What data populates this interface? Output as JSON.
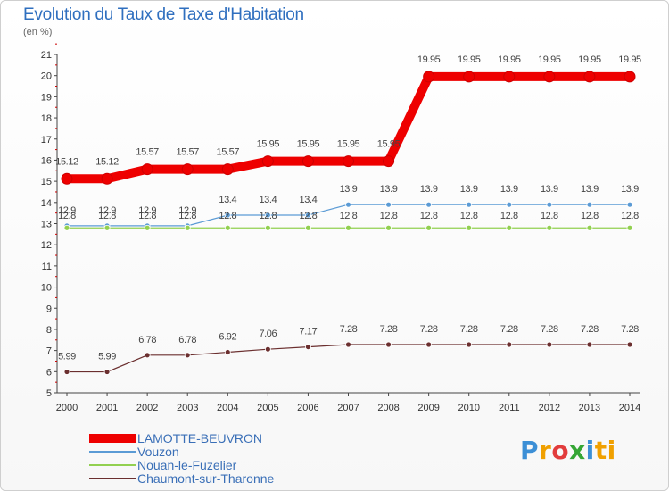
{
  "header": {
    "title": "Evolution du Taux de Taxe d'Habitation",
    "subtitle": "(en %)"
  },
  "logo": {
    "text": "Proxiti"
  },
  "chart_data": {
    "type": "line",
    "x": [
      "2000",
      "2001",
      "2002",
      "2003",
      "2004",
      "2005",
      "2006",
      "2007",
      "2008",
      "2009",
      "2010",
      "2011",
      "2012",
      "2013",
      "2014"
    ],
    "ylim": [
      5,
      21
    ],
    "yticks": [
      5,
      6,
      7,
      8,
      9,
      10,
      11,
      12,
      13,
      14,
      15,
      16,
      17,
      18,
      19,
      20,
      21
    ],
    "grid": false,
    "legend_position": "bottom-left",
    "series": [
      {
        "name": "LAMOTTE-BEUVRON",
        "color": "#ee0000",
        "values": [
          15.12,
          15.12,
          15.57,
          15.57,
          15.57,
          15.95,
          15.95,
          15.95,
          15.95,
          19.95,
          19.95,
          19.95,
          19.95,
          19.95,
          19.95
        ],
        "labels": [
          "15.12",
          "15.12",
          "15.57",
          "15.57",
          "15.57",
          "15.95",
          "15.95",
          "15.95",
          "15.95",
          "19.95",
          "19.95",
          "19.95",
          "19.95",
          "19.95",
          "19.95"
        ]
      },
      {
        "name": "Vouzon",
        "color": "#5b9bd5",
        "values": [
          12.9,
          12.9,
          12.9,
          12.9,
          13.4,
          13.4,
          13.4,
          13.9,
          13.9,
          13.9,
          13.9,
          13.9,
          13.9,
          13.9,
          13.9
        ],
        "labels": [
          "12.9",
          "12.9",
          "12.9",
          "12.9",
          "13.4",
          "13.4",
          "13.4",
          "13.9",
          "13.9",
          "13.9",
          "13.9",
          "13.9",
          "13.9",
          "13.9",
          "13.9"
        ]
      },
      {
        "name": "Nouan-le-Fuzelier",
        "color": "#92d050",
        "values": [
          12.8,
          12.8,
          12.8,
          12.8,
          12.8,
          12.8,
          12.8,
          12.8,
          12.8,
          12.8,
          12.8,
          12.8,
          12.8,
          12.8,
          12.8
        ],
        "labels": [
          "12.8",
          "12.8",
          "12.8",
          "12.8",
          "12.8",
          "12.8",
          "12.8",
          "12.8",
          "12.8",
          "12.8",
          "12.8",
          "12.8",
          "12.8",
          "12.8",
          "12.8"
        ]
      },
      {
        "name": "Chaumont-sur-Tharonne",
        "color": "#6b2f2f",
        "values": [
          5.99,
          5.99,
          6.78,
          6.78,
          6.92,
          7.06,
          7.17,
          7.28,
          7.28,
          7.28,
          7.28,
          7.28,
          7.28,
          7.28,
          7.28
        ],
        "labels": [
          "5.99",
          "5.99",
          "6.78",
          "6.78",
          "6.92",
          "7.06",
          "7.17",
          "7.28",
          "7.28",
          "7.28",
          "7.28",
          "7.28",
          "7.28",
          "7.28",
          "7.28"
        ]
      }
    ]
  }
}
